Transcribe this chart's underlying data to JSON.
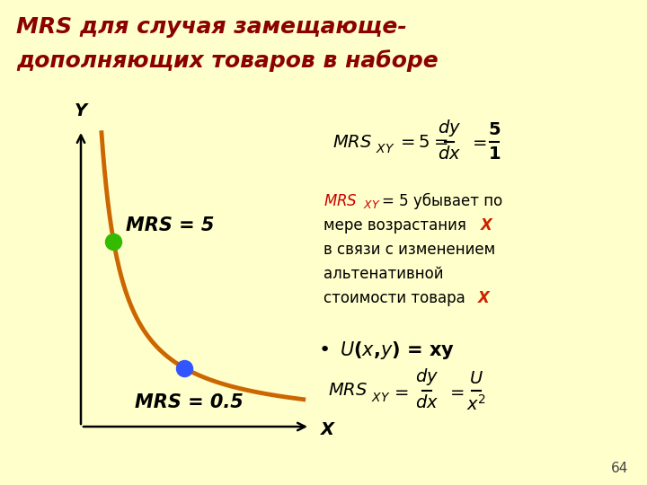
{
  "title_line1": "MRS для случая замещающе-",
  "title_line2": "дополняющих товаров в наборе",
  "background_color": "#FFFFCC",
  "curve_color": "#CC6600",
  "green_dot_color": "#33BB00",
  "blue_dot_color": "#3355FF",
  "mrs5_label": "MRS = 5",
  "mrs05_label": "MRS = 0.5",
  "xlabel": "X",
  "ylabel": "Y",
  "page_number": "64",
  "title_color": "#8B0000",
  "black": "#000000",
  "red_color": "#CC0000",
  "x_color": "#CC2200",
  "ann_line1a": "MRS",
  "ann_line1b": "XY",
  "ann_line1c": "= 5 убывает по",
  "ann_line2a": "мере возрастания ",
  "ann_line2b": "X",
  "ann_line3": "в связи с изменением",
  "ann_line4": "альтенативной",
  "ann_line5a": "стоимости товара ",
  "ann_line5b": "X"
}
